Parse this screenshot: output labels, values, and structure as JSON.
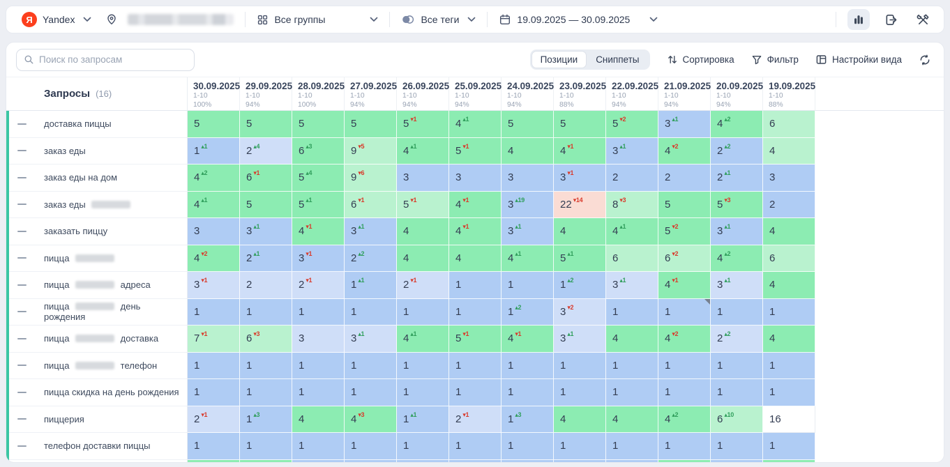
{
  "header": {
    "search_engine": "Yandex",
    "groups_label": "Все группы",
    "tags_label": "Все теги",
    "date_range": "19.09.2025 — 30.09.2025"
  },
  "toolbar": {
    "search_placeholder": "Поиск по запросам",
    "positions_label": "Позиции",
    "snippets_label": "Сниппеты",
    "sort_label": "Сортировка",
    "filter_label": "Фильтр",
    "view_settings_label": "Настройки вида"
  },
  "colors": {
    "accent_strip": "#3cc6a3",
    "delta_up": "#2f9e5b",
    "delta_down": "#d93a2b",
    "cells": {
      "g": "#8cecb2",
      "lg": "#b9f2cf",
      "b": "#afccf4",
      "lb": "#cfdef8",
      "p": "#fadcd4",
      "w": "#ffffff"
    }
  },
  "table": {
    "keywords_header": "Запросы",
    "keywords_count": "(16)",
    "columns": [
      {
        "date": "30.09.2025",
        "range": "1-10",
        "pct": "100%"
      },
      {
        "date": "29.09.2025",
        "range": "1-10",
        "pct": "94%"
      },
      {
        "date": "28.09.2025",
        "range": "1-10",
        "pct": "100%"
      },
      {
        "date": "27.09.2025",
        "range": "1-10",
        "pct": "94%"
      },
      {
        "date": "26.09.2025",
        "range": "1-10",
        "pct": "94%"
      },
      {
        "date": "25.09.2025",
        "range": "1-10",
        "pct": "94%"
      },
      {
        "date": "24.09.2025",
        "range": "1-10",
        "pct": "94%"
      },
      {
        "date": "23.09.2025",
        "range": "1-10",
        "pct": "88%"
      },
      {
        "date": "22.09.2025",
        "range": "1-10",
        "pct": "94%"
      },
      {
        "date": "21.09.2025",
        "range": "1-10",
        "pct": "94%"
      },
      {
        "date": "20.09.2025",
        "range": "1-10",
        "pct": "94%"
      },
      {
        "date": "19.09.2025",
        "range": "1-10",
        "pct": "88%"
      }
    ],
    "rows": [
      {
        "segments": [
          {
            "t": "text",
            "v": "доставка пиццы"
          }
        ],
        "cells": [
          [
            "5",
            "",
            "g"
          ],
          [
            "5",
            "",
            "g"
          ],
          [
            "5",
            "",
            "g"
          ],
          [
            "5",
            "",
            "g"
          ],
          [
            "5",
            "-1",
            "g"
          ],
          [
            "4",
            "+1",
            "g"
          ],
          [
            "5",
            "",
            "g"
          ],
          [
            "5",
            "",
            "g"
          ],
          [
            "5",
            "-2",
            "g"
          ],
          [
            "3",
            "+1",
            "b"
          ],
          [
            "4",
            "+2",
            "g"
          ],
          [
            "6",
            "",
            "lg"
          ]
        ]
      },
      {
        "segments": [
          {
            "t": "text",
            "v": "заказ еды"
          }
        ],
        "cells": [
          [
            "1",
            "+1",
            "b"
          ],
          [
            "2",
            "+4",
            "lb"
          ],
          [
            "6",
            "+3",
            "g"
          ],
          [
            "9",
            "-5",
            "lg"
          ],
          [
            "4",
            "+1",
            "g"
          ],
          [
            "5",
            "-1",
            "g"
          ],
          [
            "4",
            "",
            "g"
          ],
          [
            "4",
            "-1",
            "g"
          ],
          [
            "3",
            "+1",
            "b"
          ],
          [
            "4",
            "-2",
            "g"
          ],
          [
            "2",
            "+2",
            "b"
          ],
          [
            "4",
            "",
            "lg"
          ]
        ]
      },
      {
        "segments": [
          {
            "t": "text",
            "v": "заказ еды на дом"
          }
        ],
        "cells": [
          [
            "4",
            "+2",
            "g"
          ],
          [
            "6",
            "-1",
            "g"
          ],
          [
            "5",
            "+4",
            "g"
          ],
          [
            "9",
            "-6",
            "lg"
          ],
          [
            "3",
            "",
            "b"
          ],
          [
            "3",
            "",
            "b"
          ],
          [
            "3",
            "",
            "b"
          ],
          [
            "3",
            "-1",
            "b"
          ],
          [
            "2",
            "",
            "b"
          ],
          [
            "2",
            "",
            "b"
          ],
          [
            "2",
            "+1",
            "b"
          ],
          [
            "3",
            "",
            "b"
          ]
        ]
      },
      {
        "segments": [
          {
            "t": "text",
            "v": "заказ еды"
          },
          {
            "t": "blur"
          }
        ],
        "cells": [
          [
            "4",
            "+1",
            "g"
          ],
          [
            "5",
            "",
            "g"
          ],
          [
            "5",
            "+1",
            "g"
          ],
          [
            "6",
            "-1",
            "lg"
          ],
          [
            "5",
            "-1",
            "lg"
          ],
          [
            "4",
            "-1",
            "g"
          ],
          [
            "3",
            "+19",
            "b"
          ],
          [
            "22",
            "-14",
            "p"
          ],
          [
            "8",
            "-3",
            "lg"
          ],
          [
            "5",
            "",
            "g"
          ],
          [
            "5",
            "-3",
            "g"
          ],
          [
            "2",
            "",
            "b"
          ]
        ]
      },
      {
        "segments": [
          {
            "t": "text",
            "v": "заказать пиццу"
          }
        ],
        "cells": [
          [
            "3",
            "",
            "b"
          ],
          [
            "3",
            "+1",
            "b"
          ],
          [
            "4",
            "-1",
            "g"
          ],
          [
            "3",
            "+1",
            "b"
          ],
          [
            "4",
            "",
            "g"
          ],
          [
            "4",
            "-1",
            "g"
          ],
          [
            "3",
            "+1",
            "b"
          ],
          [
            "4",
            "",
            "g"
          ],
          [
            "4",
            "+1",
            "g"
          ],
          [
            "5",
            "-2",
            "g"
          ],
          [
            "3",
            "+1",
            "b"
          ],
          [
            "4",
            "",
            "g"
          ]
        ]
      },
      {
        "segments": [
          {
            "t": "text",
            "v": "пицца"
          },
          {
            "t": "blur"
          }
        ],
        "cells": [
          [
            "4",
            "-2",
            "g"
          ],
          [
            "2",
            "+1",
            "b"
          ],
          [
            "3",
            "-1",
            "b"
          ],
          [
            "2",
            "+2",
            "b"
          ],
          [
            "4",
            "",
            "g"
          ],
          [
            "4",
            "",
            "g"
          ],
          [
            "4",
            "+1",
            "g"
          ],
          [
            "5",
            "+1",
            "g"
          ],
          [
            "6",
            "",
            "lg"
          ],
          [
            "6",
            "-2",
            "lg"
          ],
          [
            "4",
            "+2",
            "g"
          ],
          [
            "6",
            "",
            "lg"
          ]
        ]
      },
      {
        "segments": [
          {
            "t": "text",
            "v": "пицца"
          },
          {
            "t": "blur"
          },
          {
            "t": "text",
            "v": "адреса"
          }
        ],
        "cells": [
          [
            "3",
            "-1",
            "lb"
          ],
          [
            "2",
            "",
            "lb"
          ],
          [
            "2",
            "-1",
            "lb"
          ],
          [
            "1",
            "+1",
            "b"
          ],
          [
            "2",
            "-1",
            "lb"
          ],
          [
            "1",
            "",
            "b"
          ],
          [
            "1",
            "",
            "b"
          ],
          [
            "1",
            "+2",
            "b"
          ],
          [
            "3",
            "+1",
            "lb"
          ],
          [
            "4",
            "-1",
            "g"
          ],
          [
            "3",
            "+1",
            "lb"
          ],
          [
            "4",
            "",
            "g"
          ]
        ]
      },
      {
        "segments": [
          {
            "t": "text",
            "v": "пицца"
          },
          {
            "t": "blur"
          },
          {
            "t": "text",
            "v": "день рождения"
          }
        ],
        "cells": [
          [
            "1",
            "",
            "b"
          ],
          [
            "1",
            "",
            "b"
          ],
          [
            "1",
            "",
            "b"
          ],
          [
            "1",
            "",
            "b"
          ],
          [
            "1",
            "",
            "b"
          ],
          [
            "1",
            "",
            "b"
          ],
          [
            "1",
            "+2",
            "b"
          ],
          [
            "3",
            "-2",
            "lb"
          ],
          [
            "1",
            "",
            "b"
          ],
          [
            "1",
            "",
            "b",
            "m"
          ],
          [
            "1",
            "",
            "b"
          ],
          [
            "1",
            "",
            "b"
          ]
        ]
      },
      {
        "segments": [
          {
            "t": "text",
            "v": "пицца"
          },
          {
            "t": "blur"
          },
          {
            "t": "text",
            "v": "доставка"
          }
        ],
        "cells": [
          [
            "7",
            "-1",
            "lg"
          ],
          [
            "6",
            "-3",
            "lg"
          ],
          [
            "3",
            "",
            "lb"
          ],
          [
            "3",
            "+1",
            "lb"
          ],
          [
            "4",
            "+1",
            "g"
          ],
          [
            "5",
            "-1",
            "g"
          ],
          [
            "4",
            "-1",
            "g"
          ],
          [
            "3",
            "+1",
            "lb"
          ],
          [
            "4",
            "",
            "g"
          ],
          [
            "4",
            "-2",
            "g"
          ],
          [
            "2",
            "+2",
            "lb"
          ],
          [
            "4",
            "",
            "g"
          ]
        ]
      },
      {
        "segments": [
          {
            "t": "text",
            "v": "пицца"
          },
          {
            "t": "blur"
          },
          {
            "t": "text",
            "v": "телефон"
          }
        ],
        "cells": [
          [
            "1",
            "",
            "b"
          ],
          [
            "1",
            "",
            "b"
          ],
          [
            "1",
            "",
            "b"
          ],
          [
            "1",
            "",
            "b"
          ],
          [
            "1",
            "",
            "b"
          ],
          [
            "1",
            "",
            "b"
          ],
          [
            "1",
            "",
            "b"
          ],
          [
            "1",
            "",
            "b"
          ],
          [
            "1",
            "",
            "b"
          ],
          [
            "1",
            "",
            "b"
          ],
          [
            "1",
            "",
            "b"
          ],
          [
            "1",
            "",
            "b"
          ]
        ]
      },
      {
        "segments": [
          {
            "t": "text",
            "v": "пицца скидка на день рождения"
          }
        ],
        "cells": [
          [
            "1",
            "",
            "b"
          ],
          [
            "1",
            "",
            "b"
          ],
          [
            "1",
            "",
            "b"
          ],
          [
            "1",
            "",
            "b"
          ],
          [
            "1",
            "",
            "b"
          ],
          [
            "1",
            "",
            "b"
          ],
          [
            "1",
            "",
            "b"
          ],
          [
            "1",
            "",
            "b"
          ],
          [
            "1",
            "",
            "b"
          ],
          [
            "1",
            "",
            "b"
          ],
          [
            "1",
            "",
            "b"
          ],
          [
            "1",
            "",
            "b"
          ]
        ]
      },
      {
        "segments": [
          {
            "t": "text",
            "v": "пиццерия"
          }
        ],
        "cells": [
          [
            "2",
            "-1",
            "lb"
          ],
          [
            "1",
            "+3",
            "b"
          ],
          [
            "4",
            "",
            "g"
          ],
          [
            "4",
            "-3",
            "g"
          ],
          [
            "1",
            "+1",
            "b"
          ],
          [
            "2",
            "-1",
            "lb"
          ],
          [
            "1",
            "+3",
            "b"
          ],
          [
            "4",
            "",
            "g"
          ],
          [
            "4",
            "",
            "g"
          ],
          [
            "4",
            "+2",
            "g"
          ],
          [
            "6",
            "+10",
            "lg"
          ],
          [
            "16",
            "",
            "w"
          ]
        ]
      },
      {
        "segments": [
          {
            "t": "text",
            "v": "телефон доставки пиццы"
          }
        ],
        "cells": [
          [
            "1",
            "",
            "b"
          ],
          [
            "1",
            "",
            "b"
          ],
          [
            "1",
            "",
            "b"
          ],
          [
            "1",
            "",
            "b"
          ],
          [
            "1",
            "",
            "b"
          ],
          [
            "1",
            "",
            "b"
          ],
          [
            "1",
            "",
            "b"
          ],
          [
            "1",
            "",
            "b"
          ],
          [
            "1",
            "",
            "b"
          ],
          [
            "1",
            "",
            "b"
          ],
          [
            "1",
            "",
            "b"
          ],
          [
            "1",
            "",
            "b"
          ]
        ]
      }
    ],
    "partial_row_colors": [
      "g",
      "g",
      "b",
      "b",
      "b",
      "b",
      "b",
      "b",
      "b",
      "g",
      "b",
      "g"
    ]
  }
}
